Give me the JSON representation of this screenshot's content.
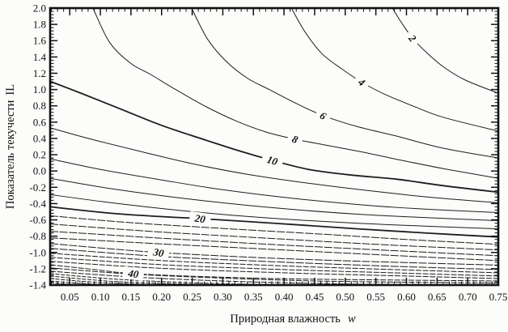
{
  "page": {
    "background": "#fcfcfa",
    "line_color": "#1d1d1d"
  },
  "chart_data": {
    "type": "line",
    "subtype": "contour-plot",
    "title": "",
    "xlabel_text": "Природная влажность",
    "xlabel_var": "w",
    "ylabel_text": "Показатель текучести",
    "ylabel_var": "IL",
    "x_range": [
      0.018,
      0.75
    ],
    "y_range": [
      -1.4,
      2.0
    ],
    "x_major_step": 0.05,
    "x_minor_step": 0.01,
    "y_major_step": 0.2,
    "y_minor_step": 0.04,
    "grid": false,
    "legend": false,
    "x_tick_labels": [
      "0.05",
      "0.10",
      "0.15",
      "0.20",
      "0.25",
      "0.30",
      "0.35",
      "0.40",
      "0.45",
      "0.50",
      "0.55",
      "0.60",
      "0.65",
      "0.70",
      "0.75"
    ],
    "y_tick_labels": [
      "2.0",
      "1.8",
      "1.6",
      "1.4",
      "1.2",
      "1.0",
      "0.8",
      "0.6",
      "0.4",
      "0.2",
      "0.0",
      "-0.2",
      "-0.4",
      "-0.6",
      "-0.8",
      "-1.0",
      "-1.2",
      "-1.4"
    ],
    "bold_values": [
      "10",
      "20"
    ],
    "contours": [
      {
        "value": "2",
        "points": [
          [
            0.577,
            2.0
          ],
          [
            0.592,
            1.82
          ],
          [
            0.61,
            1.63
          ],
          [
            0.632,
            1.46
          ],
          [
            0.66,
            1.28
          ],
          [
            0.695,
            1.12
          ],
          [
            0.75,
            0.955
          ]
        ],
        "label": {
          "w": 0.61,
          "il": 1.63,
          "rot": 50
        }
      },
      {
        "value": "4",
        "points": [
          [
            0.412,
            2.0
          ],
          [
            0.435,
            1.7
          ],
          [
            0.462,
            1.44
          ],
          [
            0.495,
            1.25
          ],
          [
            0.527,
            1.09
          ],
          [
            0.565,
            0.94
          ],
          [
            0.61,
            0.8
          ],
          [
            0.66,
            0.66
          ],
          [
            0.75,
            0.49
          ]
        ],
        "label": {
          "w": 0.527,
          "il": 1.09,
          "rot": 38
        }
      },
      {
        "value": "6",
        "points": [
          [
            0.249,
            2.0
          ],
          [
            0.275,
            1.62
          ],
          [
            0.305,
            1.35
          ],
          [
            0.34,
            1.14
          ],
          [
            0.376,
            1.0
          ],
          [
            0.42,
            0.83
          ],
          [
            0.464,
            0.68
          ],
          [
            0.52,
            0.545
          ],
          [
            0.583,
            0.43
          ],
          [
            0.66,
            0.28
          ],
          [
            0.75,
            0.16
          ]
        ],
        "label": {
          "w": 0.464,
          "il": 0.68,
          "rot": 30
        }
      },
      {
        "value": "8",
        "points": [
          [
            0.088,
            2.0
          ],
          [
            0.115,
            1.58
          ],
          [
            0.15,
            1.32
          ],
          [
            0.181,
            1.19
          ],
          [
            0.223,
            1.0
          ],
          [
            0.27,
            0.8
          ],
          [
            0.32,
            0.62
          ],
          [
            0.37,
            0.48
          ],
          [
            0.418,
            0.39
          ],
          [
            0.47,
            0.315
          ],
          [
            0.53,
            0.23
          ],
          [
            0.583,
            0.145
          ],
          [
            0.66,
            0.03
          ],
          [
            0.75,
            -0.09
          ]
        ],
        "label": {
          "w": 0.418,
          "il": 0.39,
          "rot": 22
        }
      },
      {
        "value": "10",
        "points": [
          [
            0.018,
            1.1
          ],
          [
            0.07,
            0.95
          ],
          [
            0.13,
            0.77
          ],
          [
            0.2,
            0.56
          ],
          [
            0.27,
            0.385
          ],
          [
            0.33,
            0.24
          ],
          [
            0.381,
            0.13
          ],
          [
            0.44,
            0.02
          ],
          [
            0.51,
            -0.05
          ],
          [
            0.583,
            -0.1
          ],
          [
            0.66,
            -0.18
          ],
          [
            0.75,
            -0.26
          ]
        ],
        "label": {
          "w": 0.381,
          "il": 0.13,
          "rot": 18
        }
      },
      {
        "value": "12",
        "points": [
          [
            0.018,
            0.53
          ],
          [
            0.08,
            0.4
          ],
          [
            0.16,
            0.25
          ],
          [
            0.25,
            0.09
          ],
          [
            0.34,
            -0.04
          ],
          [
            0.45,
            -0.16
          ],
          [
            0.56,
            -0.26
          ],
          [
            0.65,
            -0.33
          ],
          [
            0.75,
            -0.39
          ]
        ],
        "label": null
      },
      {
        "value": "14",
        "points": [
          [
            0.018,
            0.15
          ],
          [
            0.1,
            0.02
          ],
          [
            0.2,
            -0.11
          ],
          [
            0.3,
            -0.23
          ],
          [
            0.42,
            -0.34
          ],
          [
            0.55,
            -0.43
          ],
          [
            0.65,
            -0.475
          ],
          [
            0.75,
            -0.51
          ]
        ],
        "label": null
      },
      {
        "value": "16",
        "points": [
          [
            0.018,
            -0.09
          ],
          [
            0.12,
            -0.22
          ],
          [
            0.24,
            -0.34
          ],
          [
            0.38,
            -0.45
          ],
          [
            0.52,
            -0.53
          ],
          [
            0.64,
            -0.575
          ],
          [
            0.75,
            -0.61
          ]
        ],
        "label": null
      },
      {
        "value": "18",
        "points": [
          [
            0.018,
            -0.29
          ],
          [
            0.14,
            -0.41
          ],
          [
            0.28,
            -0.52
          ],
          [
            0.42,
            -0.6
          ],
          [
            0.56,
            -0.655
          ],
          [
            0.75,
            -0.71
          ]
        ],
        "label": null
      },
      {
        "value": "20",
        "points": [
          [
            0.018,
            -0.44
          ],
          [
            0.12,
            -0.52
          ],
          [
            0.2,
            -0.56
          ],
          [
            0.263,
            -0.585
          ],
          [
            0.392,
            -0.645
          ],
          [
            0.52,
            -0.71
          ],
          [
            0.64,
            -0.765
          ],
          [
            0.75,
            -0.81
          ]
        ],
        "label": {
          "w": 0.263,
          "il": -0.585,
          "rot": 8
        }
      },
      {
        "value": "22",
        "points": [
          [
            0.018,
            -0.55
          ],
          [
            0.15,
            -0.635
          ],
          [
            0.3,
            -0.705
          ],
          [
            0.45,
            -0.77
          ],
          [
            0.6,
            -0.84
          ],
          [
            0.75,
            -0.9
          ]
        ],
        "label": null
      },
      {
        "value": "24",
        "points": [
          [
            0.018,
            -0.65
          ],
          [
            0.18,
            -0.74
          ],
          [
            0.35,
            -0.815
          ],
          [
            0.55,
            -0.9
          ],
          [
            0.75,
            -0.97
          ]
        ],
        "label": null
      },
      {
        "value": "26",
        "points": [
          [
            0.018,
            -0.74
          ],
          [
            0.2,
            -0.825
          ],
          [
            0.4,
            -0.91
          ],
          [
            0.6,
            -0.985
          ],
          [
            0.75,
            -1.04
          ]
        ],
        "label": null
      },
      {
        "value": "28",
        "points": [
          [
            0.018,
            -0.82
          ],
          [
            0.2,
            -0.895
          ],
          [
            0.4,
            -0.97
          ],
          [
            0.6,
            -1.045
          ],
          [
            0.75,
            -1.1
          ]
        ],
        "label": null
      },
      {
        "value": "30",
        "points": [
          [
            0.018,
            -0.89
          ],
          [
            0.1,
            -0.945
          ],
          [
            0.195,
            -1.0
          ],
          [
            0.32,
            -1.05
          ],
          [
            0.45,
            -1.09
          ],
          [
            0.6,
            -1.125
          ],
          [
            0.75,
            -1.155
          ]
        ],
        "label": {
          "w": 0.195,
          "il": -1.0,
          "rot": 10
        }
      },
      {
        "value": "32",
        "points": [
          [
            0.018,
            -0.95
          ],
          [
            0.2,
            -1.05
          ],
          [
            0.4,
            -1.12
          ],
          [
            0.6,
            -1.175
          ],
          [
            0.75,
            -1.21
          ]
        ],
        "label": null
      },
      {
        "value": "34",
        "points": [
          [
            0.018,
            -1.01
          ],
          [
            0.2,
            -1.1
          ],
          [
            0.4,
            -1.165
          ],
          [
            0.6,
            -1.215
          ],
          [
            0.75,
            -1.25
          ]
        ],
        "label": null
      },
      {
        "value": "36",
        "points": [
          [
            0.018,
            -1.06
          ],
          [
            0.2,
            -1.15
          ],
          [
            0.4,
            -1.21
          ],
          [
            0.6,
            -1.255
          ],
          [
            0.75,
            -1.29
          ]
        ],
        "label": null
      },
      {
        "value": "38",
        "points": [
          [
            0.018,
            -1.11
          ],
          [
            0.2,
            -1.195
          ],
          [
            0.4,
            -1.25
          ],
          [
            0.6,
            -1.29
          ],
          [
            0.75,
            -1.32
          ]
        ],
        "label": null
      },
      {
        "value": "40",
        "points": [
          [
            0.018,
            -1.15
          ],
          [
            0.09,
            -1.21
          ],
          [
            0.154,
            -1.26
          ],
          [
            0.28,
            -1.3
          ],
          [
            0.42,
            -1.325
          ],
          [
            0.6,
            -1.34
          ],
          [
            0.75,
            -1.35
          ]
        ],
        "label": {
          "w": 0.154,
          "il": -1.26,
          "rot": 8
        }
      },
      {
        "value": "42",
        "points": [
          [
            0.018,
            -1.19
          ],
          [
            0.15,
            -1.265
          ],
          [
            0.3,
            -1.315
          ],
          [
            0.45,
            -1.35
          ],
          [
            0.6,
            -1.365
          ],
          [
            0.75,
            -1.375
          ]
        ],
        "label": null
      },
      {
        "value": "44",
        "points": [
          [
            0.018,
            -1.23
          ],
          [
            0.15,
            -1.3
          ],
          [
            0.3,
            -1.35
          ],
          [
            0.45,
            -1.38
          ],
          [
            0.6,
            -1.395
          ],
          [
            0.7,
            -1.4
          ]
        ],
        "label": null
      },
      {
        "value": "46",
        "points": [
          [
            0.018,
            -1.26
          ],
          [
            0.13,
            -1.33
          ],
          [
            0.26,
            -1.375
          ],
          [
            0.38,
            -1.395
          ],
          [
            0.48,
            -1.4
          ]
        ],
        "label": null
      },
      {
        "value": "48",
        "points": [
          [
            0.018,
            -1.29
          ],
          [
            0.12,
            -1.355
          ],
          [
            0.22,
            -1.385
          ],
          [
            0.32,
            -1.4
          ]
        ],
        "label": null
      },
      {
        "value": "50",
        "points": [
          [
            0.018,
            -1.32
          ],
          [
            0.1,
            -1.37
          ],
          [
            0.2,
            -1.4
          ]
        ],
        "label": null
      },
      {
        "value": "52",
        "points": [
          [
            0.018,
            -1.35
          ],
          [
            0.08,
            -1.385
          ],
          [
            0.13,
            -1.4
          ]
        ],
        "label": null
      },
      {
        "value": "54",
        "points": [
          [
            0.018,
            -1.37
          ],
          [
            0.05,
            -1.39
          ],
          [
            0.085,
            -1.4
          ]
        ],
        "label": null
      }
    ]
  }
}
